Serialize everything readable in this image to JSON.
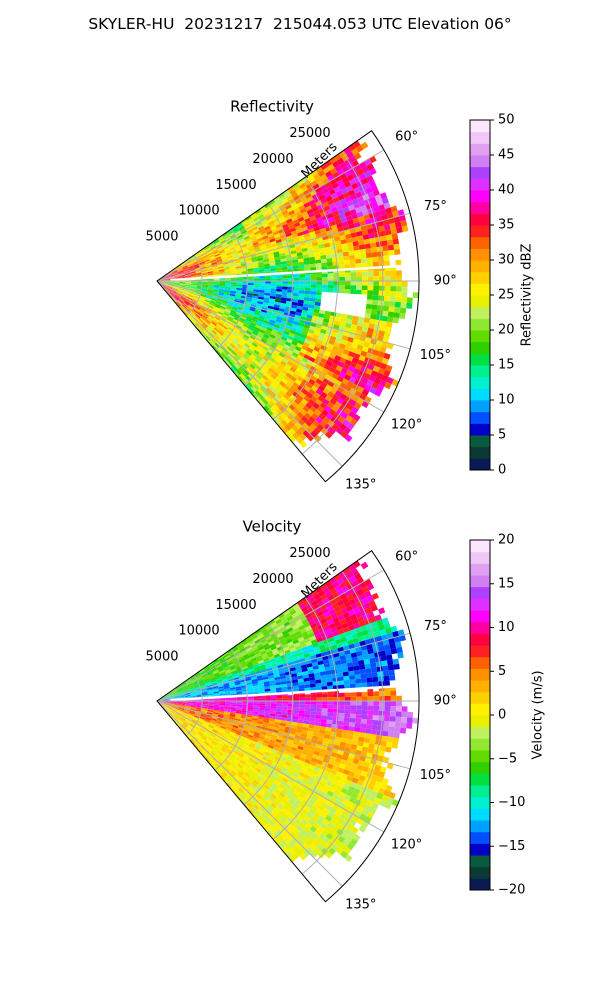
{
  "suptitle": "SKYLER-HU  20231217  215044.053 UTC Elevation 06°",
  "chart_data": [
    {
      "type": "heatmap",
      "projection": "polar-sector",
      "title": "Reflectivity",
      "range_label": "Meters",
      "azimuth_range_deg": [
        55,
        140
      ],
      "range_max": 29000,
      "range_ticks": [
        5000,
        10000,
        15000,
        20000,
        25000
      ],
      "range_tick_labels": [
        "5000",
        "10000",
        "15000",
        "20000",
        "25000"
      ],
      "azimuth_ticks": [
        60,
        75,
        90,
        105,
        120,
        135
      ],
      "azimuth_tick_labels": [
        "60°",
        "75°",
        "90°",
        "105°",
        "120°",
        "135°"
      ],
      "grid": true,
      "colorbar": {
        "label": "Reflectivity dBZ",
        "min": 0,
        "max": 50,
        "ticks": [
          0,
          5,
          10,
          15,
          20,
          25,
          30,
          35,
          40,
          45,
          50
        ],
        "tick_labels": [
          "0",
          "5",
          "10",
          "15",
          "20",
          "25",
          "30",
          "35",
          "40",
          "45",
          "50"
        ],
        "colors": [
          "#0a1a55",
          "#0b3a35",
          "#0a5a3e",
          "#0000c8",
          "#0050ff",
          "#00a0ff",
          "#00dcff",
          "#00f0d0",
          "#00f090",
          "#00e040",
          "#30d000",
          "#60dc00",
          "#90e830",
          "#c0f060",
          "#e8f000",
          "#fff000",
          "#ffd000",
          "#ffb000",
          "#ff9000",
          "#ff6000",
          "#ff2020",
          "#ff0040",
          "#ff00a0",
          "#ff00ff",
          "#e030ff",
          "#b040ff",
          "#d080f0",
          "#e0a0f0",
          "#f0c8f8",
          "#fbe8ff"
        ],
        "position": "right"
      },
      "field": [
        {
          "azimuth": [
            55,
            70
          ],
          "range": [
            10000,
            29000
          ],
          "value": 28
        },
        {
          "azimuth": [
            65,
            80
          ],
          "range": [
            12000,
            22000
          ],
          "value": 36
        },
        {
          "azimuth": [
            75,
            87
          ],
          "range": [
            0,
            12000
          ],
          "value": 30
        },
        {
          "azimuth": [
            88,
            105
          ],
          "range": [
            12000,
            26000
          ],
          "value": 20
        },
        {
          "azimuth": [
            95,
            99
          ],
          "range": [
            19000,
            23000
          ],
          "value": null
        },
        {
          "azimuth": [
            100,
            120
          ],
          "range": [
            22000,
            29000
          ],
          "value": 32
        },
        {
          "azimuth": [
            110,
            140
          ],
          "range": [
            0,
            29000
          ],
          "value": 24
        }
      ]
    },
    {
      "type": "heatmap",
      "projection": "polar-sector",
      "title": "Velocity",
      "range_label": "Meters",
      "azimuth_range_deg": [
        55,
        140
      ],
      "range_max": 29000,
      "range_ticks": [
        5000,
        10000,
        15000,
        20000,
        25000
      ],
      "range_tick_labels": [
        "5000",
        "10000",
        "15000",
        "20000",
        "25000"
      ],
      "azimuth_ticks": [
        60,
        75,
        90,
        105,
        120,
        135
      ],
      "azimuth_tick_labels": [
        "60°",
        "75°",
        "90°",
        "105°",
        "120°",
        "135°"
      ],
      "grid": true,
      "colorbar": {
        "label": "Velocity (m/s)",
        "min": -20,
        "max": 20,
        "ticks": [
          -20,
          -15,
          -10,
          -5,
          0,
          5,
          10,
          15,
          20
        ],
        "tick_labels": [
          "−20",
          "−15",
          "−10",
          "−5",
          "0",
          "5",
          "10",
          "15",
          "20"
        ],
        "colors": [
          "#0a1a55",
          "#0b3a35",
          "#0a5a3e",
          "#0000c8",
          "#0050ff",
          "#00a0ff",
          "#00dcff",
          "#00f0d0",
          "#00f090",
          "#00e040",
          "#30d000",
          "#60dc00",
          "#90e830",
          "#c0f060",
          "#e8f000",
          "#fff000",
          "#ffd000",
          "#ffb000",
          "#ff9000",
          "#ff6000",
          "#ff2020",
          "#ff0040",
          "#ff00a0",
          "#ff00ff",
          "#e030ff",
          "#b040ff",
          "#d080f0",
          "#e0a0f0",
          "#f0c8f8",
          "#fbe8ff"
        ],
        "position": "right"
      },
      "field": [
        {
          "azimuth": [
            55,
            68
          ],
          "range": [
            20000,
            29000
          ],
          "value": 8
        },
        {
          "azimuth": [
            60,
            75
          ],
          "range": [
            8000,
            20000
          ],
          "value": -6
        },
        {
          "azimuth": [
            75,
            86
          ],
          "range": [
            0,
            29000
          ],
          "value": -11
        },
        {
          "azimuth": [
            86,
            100
          ],
          "range": [
            0,
            29000
          ],
          "value": 14
        },
        {
          "azimuth": [
            100,
            140
          ],
          "range": [
            0,
            29000
          ],
          "value": 4
        }
      ]
    }
  ]
}
